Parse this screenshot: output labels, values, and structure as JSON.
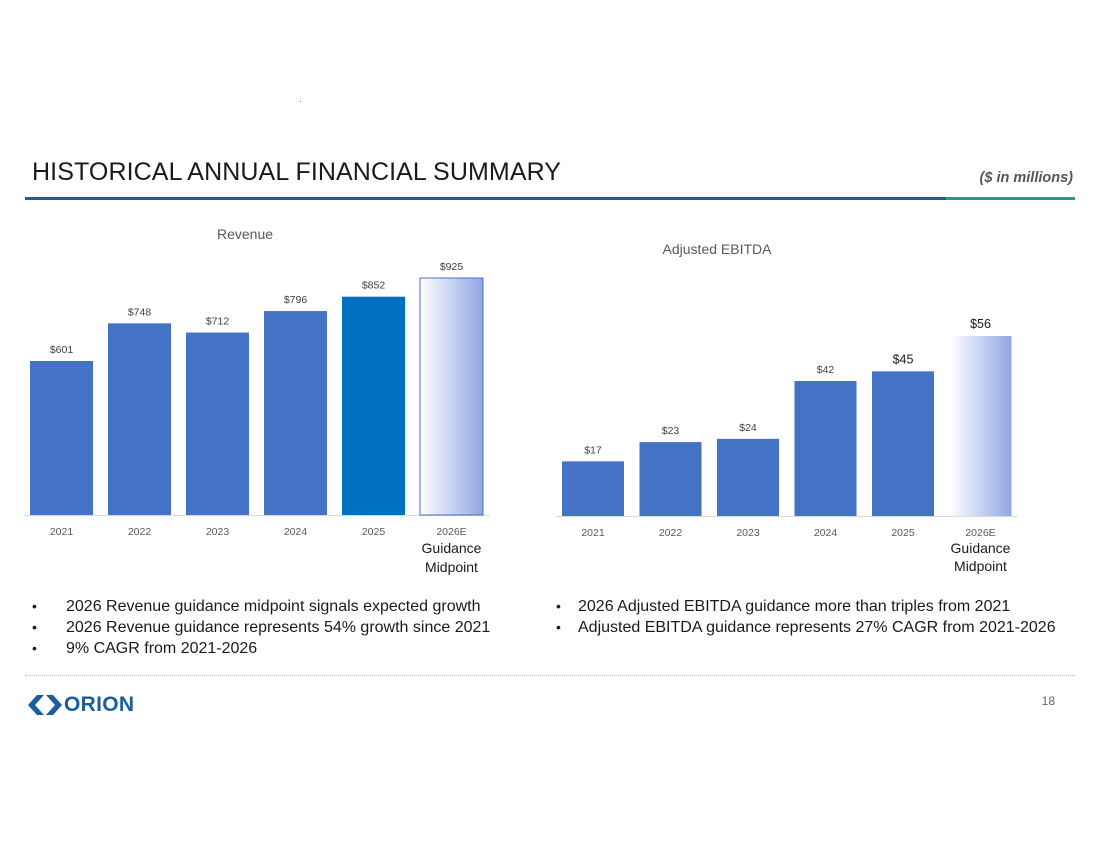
{
  "header": {
    "title": "HISTORICAL ANNUAL FINANCIAL SUMMARY",
    "units": "($ in millions)"
  },
  "colors": {
    "bar": "#4472c4",
    "bar_highlight": "#0070c0",
    "guidance_start": "#ffffff",
    "guidance_end": "#8fa7e4",
    "title_rule": "#1f5f87",
    "title_rule_accent": "#1f9e95",
    "brand": "#1a5f9b"
  },
  "chart_data": [
    {
      "type": "bar",
      "title": "Revenue",
      "categories": [
        "2021",
        "2022",
        "2023",
        "2024",
        "2025",
        "2026E"
      ],
      "values": [
        601,
        748,
        712,
        796,
        852,
        925
      ],
      "labels": [
        "$601",
        "$748",
        "$712",
        "$796",
        "$852",
        "$925"
      ],
      "highlight_category": "2025",
      "guidance_category": "2026E",
      "guidance_note": [
        "Guidance",
        "Midpoint"
      ],
      "xlabel": "",
      "ylabel": "",
      "ylim": [
        0,
        925
      ],
      "grid": false
    },
    {
      "type": "bar",
      "title": "Adjusted EBITDA",
      "categories": [
        "2021",
        "2022",
        "2023",
        "2024",
        "2025",
        "2026E"
      ],
      "values": [
        17,
        23,
        24,
        42,
        45,
        56
      ],
      "labels": [
        "$17",
        "$23",
        "$24",
        "$42",
        "$45",
        "$56"
      ],
      "guidance_category": "2026E",
      "guidance_note": [
        "Guidance",
        "Midpoint"
      ],
      "xlabel": "",
      "ylabel": "",
      "ylim": [
        0,
        56
      ],
      "grid": false
    }
  ],
  "bullets_left": [
    "2026 Revenue guidance midpoint signals expected growth",
    "2026 Revenue guidance represents 54% growth since 2021",
    "9% CAGR from 2021-2026"
  ],
  "bullets_right": [
    "2026 Adjusted EBITDA guidance more than triples from 2021",
    "Adjusted EBITDA guidance represents 27% CAGR from 2021-2026"
  ],
  "footer": {
    "logo_text": "ORION",
    "page_number": "18"
  }
}
